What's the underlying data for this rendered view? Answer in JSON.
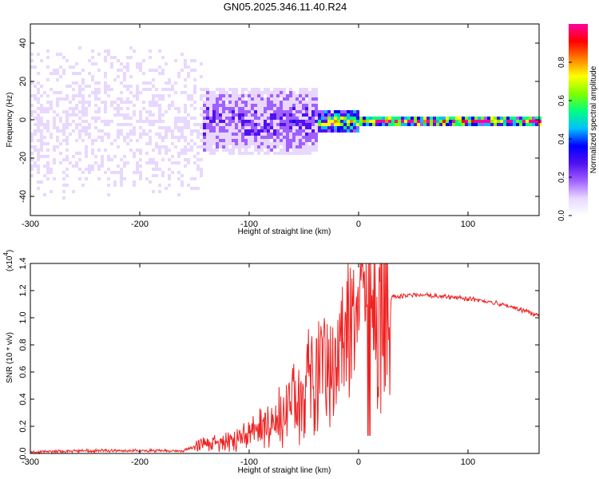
{
  "title": "GN05.2025.346.11.40.R24",
  "colors": {
    "snr_line": "#ee2222",
    "colormap": [
      "#ffffff",
      "#e8d8ff",
      "#a060ff",
      "#5010f0",
      "#0000ff",
      "#00c0ff",
      "#00ff80",
      "#80ff00",
      "#ffff00",
      "#ff8000",
      "#ff0000",
      "#ff00a0"
    ]
  },
  "chart_data": [
    {
      "type": "heatmap",
      "xlabel": "Height of straight line (km)",
      "ylabel": "Frequency (Hz)",
      "xlim": [
        -300,
        165
      ],
      "ylim": [
        -50,
        50
      ],
      "xticks": [
        -300,
        -200,
        -100,
        0,
        100
      ],
      "xtick_labels": [
        "-300",
        "-200",
        "-100",
        "0",
        "100"
      ],
      "yticks": [
        -40,
        -20,
        0,
        20,
        40
      ],
      "ytick_labels": [
        "-40",
        "-20",
        "0",
        "20",
        "40"
      ],
      "colorbar": {
        "label": "Normalized spectral amplitude",
        "range": [
          0,
          1
        ],
        "ticks": [
          0.0,
          0.2,
          0.4,
          0.6,
          0.8
        ],
        "tick_labels": [
          "0.0",
          "0.2",
          "0.4",
          "0.6",
          "0.8"
        ]
      },
      "regions": [
        {
          "x_range": [
            -300,
            -145
          ],
          "freq_range": [
            -50,
            50
          ],
          "amplitude": 0.12
        },
        {
          "x_range": [
            -145,
            -40
          ],
          "freq_range": [
            -18,
            18
          ],
          "amplitude": 0.25
        },
        {
          "x_range": [
            -40,
            0
          ],
          "freq_range": [
            -6,
            6
          ],
          "amplitude": 0.6
        },
        {
          "x_range": [
            0,
            165
          ],
          "freq_range": [
            -2,
            2
          ],
          "amplitude": 0.85
        }
      ]
    },
    {
      "type": "line",
      "xlabel": "Height of straight line (km)",
      "ylabel": "SNR (10 * v/v)",
      "y_multiplier": "(x10",
      "y_multiplier_exp": "4",
      "y_multiplier_close": ")",
      "xlim": [
        -300,
        165
      ],
      "ylim": [
        0,
        1.4
      ],
      "xticks": [
        -300,
        -200,
        -100,
        0,
        100
      ],
      "xtick_labels": [
        "-300",
        "-200",
        "-100",
        "0",
        "100"
      ],
      "yticks": [
        0.0,
        0.2,
        0.4,
        0.6,
        0.8,
        1.0,
        1.2,
        1.4
      ],
      "ytick_labels": [
        "0.0",
        "0.2",
        "0.4",
        "0.6",
        "0.8",
        "1.0",
        "1.2",
        "1.4"
      ],
      "series": [
        {
          "color": "#ee2222",
          "x": [
            -300,
            -250,
            -200,
            -160,
            -150,
            -140,
            -120,
            -100,
            -80,
            -60,
            -40,
            -20,
            -10,
            0,
            10,
            20,
            30,
            50,
            70,
            100,
            130,
            165
          ],
          "y": [
            0.01,
            0.02,
            0.02,
            0.02,
            0.05,
            0.07,
            0.09,
            0.14,
            0.25,
            0.38,
            0.55,
            0.68,
            0.8,
            0.9,
            1.0,
            1.08,
            1.15,
            1.17,
            1.16,
            1.14,
            1.1,
            1.02
          ]
        }
      ]
    }
  ]
}
